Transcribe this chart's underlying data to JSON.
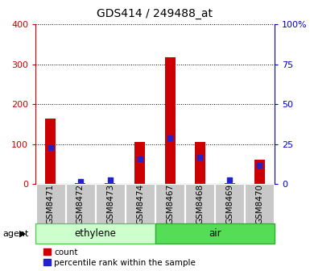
{
  "title": "GDS414 / 249488_at",
  "samples": [
    "GSM8471",
    "GSM8472",
    "GSM8473",
    "GSM8474",
    "GSM8467",
    "GSM8468",
    "GSM8469",
    "GSM8470"
  ],
  "counts": [
    165,
    2,
    2,
    105,
    318,
    106,
    2,
    62
  ],
  "percentiles": [
    23,
    2,
    3,
    16,
    29,
    17,
    3,
    12
  ],
  "groups": [
    {
      "label": "ethylene",
      "start": 0,
      "end": 4,
      "color": "#ccffcc",
      "edge_color": "#55cc55"
    },
    {
      "label": "air",
      "start": 4,
      "end": 8,
      "color": "#55dd55",
      "edge_color": "#33aa33"
    }
  ],
  "agent_label": "agent",
  "left_yticks": [
    0,
    100,
    200,
    300,
    400
  ],
  "right_yticks": [
    0,
    25,
    50,
    75,
    100
  ],
  "right_yticklabels": [
    "0",
    "25",
    "50",
    "75",
    "100%"
  ],
  "left_color": "#cc0000",
  "right_color": "#0000cc",
  "bar_color_count": "#cc0000",
  "bar_color_pct": "#2222cc",
  "legend_count": "count",
  "legend_pct": "percentile rank within the sample",
  "ylim_left": [
    0,
    400
  ],
  "ylim_right": [
    0,
    100
  ],
  "tick_bg_color": "#c8c8c8",
  "bar_width": 0.35
}
